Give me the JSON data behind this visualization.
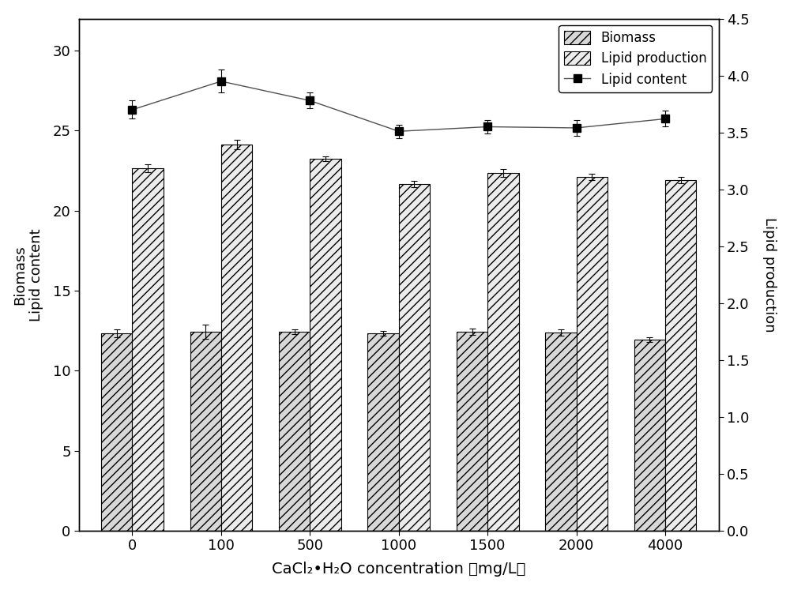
{
  "categories": [
    0,
    100,
    500,
    1000,
    1500,
    2000,
    4000
  ],
  "x_labels": [
    "0",
    "100",
    "500",
    "1000",
    "1500",
    "2000",
    "4000"
  ],
  "biomass": [
    12.35,
    12.45,
    12.45,
    12.35,
    12.45,
    12.4,
    11.95
  ],
  "biomass_err": [
    0.25,
    0.45,
    0.15,
    0.15,
    0.2,
    0.2,
    0.15
  ],
  "lipid_production": [
    22.65,
    24.15,
    23.25,
    21.65,
    22.35,
    22.1,
    21.9
  ],
  "lipid_production_err": [
    0.25,
    0.3,
    0.15,
    0.2,
    0.25,
    0.2,
    0.2
  ],
  "lipid_content": [
    3.7,
    3.95,
    3.78,
    3.51,
    3.55,
    3.54,
    3.62
  ],
  "lipid_content_err": [
    0.08,
    0.1,
    0.07,
    0.06,
    0.06,
    0.07,
    0.07
  ],
  "ylim_left": [
    0,
    32
  ],
  "ylim_right": [
    0.0,
    4.5
  ],
  "yticks_left": [
    0,
    5,
    10,
    15,
    20,
    25,
    30
  ],
  "yticks_right": [
    0.0,
    0.5,
    1.0,
    1.5,
    2.0,
    2.5,
    3.0,
    3.5,
    4.0,
    4.5
  ],
  "xlabel": "CaCl₂•H₂O concentration （mg/L）",
  "ylabel_left": "Biomass\nLipid content",
  "ylabel_right": "Lipid production",
  "bar_width": 0.35,
  "biomass_color": "#d8d8d8",
  "lipid_prod_color": "#ececec",
  "biomass_hatch": "///",
  "lipid_prod_hatch": "///",
  "line_color": "#505050",
  "marker_color": "#000000",
  "background_color": "#ffffff",
  "legend_labels": [
    "Biomass",
    "Lipid production",
    "Lipid content"
  ]
}
